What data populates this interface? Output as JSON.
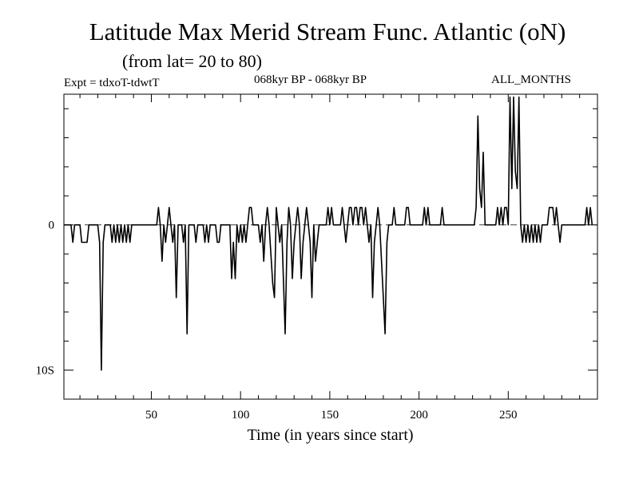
{
  "title": "Latitude Max Merid Stream Func. Atlantic (oN)",
  "subtitle": "(from lat= 20 to 80)",
  "experiment": "Expt = tdxoT-tdwtT",
  "period": "068kyr BP - 068kyr BP",
  "months": "ALL_MONTHS",
  "chart_data": {
    "type": "line",
    "title": "Latitude Max Merid Stream Func. Atlantic (oN)",
    "subtitle": "(from lat= 20 to 80)",
    "xlabel": "Time (in years since start)",
    "ylabel": "",
    "xlim": [
      1,
      300
    ],
    "ylim": [
      -12,
      9
    ],
    "x_ticks": [
      50,
      100,
      150,
      200,
      250
    ],
    "x_tick_labels": [
      "50",
      "100",
      "150",
      "200",
      "250"
    ],
    "y_ticks": [
      0,
      -10
    ],
    "y_tick_labels": [
      "0",
      "10S"
    ],
    "grid": false,
    "zero_line_dashed": true,
    "series": [
      {
        "color": "#000000",
        "points": [
          [
            1,
            0
          ],
          [
            5,
            0
          ],
          [
            6,
            -1.2
          ],
          [
            7,
            0
          ],
          [
            10,
            0
          ],
          [
            11,
            -1.2
          ],
          [
            14,
            -1.2
          ],
          [
            15,
            0
          ],
          [
            19,
            0
          ],
          [
            20,
            0
          ],
          [
            21,
            -1.2
          ],
          [
            22,
            -10
          ],
          [
            23,
            -1.2
          ],
          [
            24,
            0
          ],
          [
            27,
            0
          ],
          [
            28,
            -1.2
          ],
          [
            29,
            0
          ],
          [
            30,
            -1.2
          ],
          [
            31,
            0
          ],
          [
            32,
            -1.2
          ],
          [
            33,
            0
          ],
          [
            34,
            -1.2
          ],
          [
            35,
            0
          ],
          [
            36,
            -1.2
          ],
          [
            37,
            0
          ],
          [
            38,
            -1.2
          ],
          [
            39,
            0
          ],
          [
            42,
            0
          ],
          [
            53,
            0
          ],
          [
            54,
            1.2
          ],
          [
            55,
            0
          ],
          [
            56,
            -2.5
          ],
          [
            57,
            0
          ],
          [
            58,
            -1.2
          ],
          [
            59,
            0
          ],
          [
            60,
            1.2
          ],
          [
            61,
            0
          ],
          [
            62,
            -1.2
          ],
          [
            63,
            0
          ],
          [
            64,
            -5
          ],
          [
            65,
            0
          ],
          [
            67,
            0
          ],
          [
            68,
            -1.2
          ],
          [
            69,
            0
          ],
          [
            70,
            -7.5
          ],
          [
            71,
            0
          ],
          [
            74,
            0
          ],
          [
            75,
            -1.2
          ],
          [
            76,
            0
          ],
          [
            79,
            0
          ],
          [
            80,
            -1.2
          ],
          [
            81,
            0
          ],
          [
            82,
            -1.2
          ],
          [
            83,
            0
          ],
          [
            86,
            0
          ],
          [
            87,
            -1.2
          ],
          [
            88,
            -1.2
          ],
          [
            89,
            0
          ],
          [
            94,
            0
          ],
          [
            95,
            -3.7
          ],
          [
            96,
            -1.2
          ],
          [
            97,
            -3.7
          ],
          [
            98,
            0
          ],
          [
            99,
            -1.2
          ],
          [
            100,
            0
          ],
          [
            101,
            -1.2
          ],
          [
            102,
            0
          ],
          [
            103,
            -1.2
          ],
          [
            104,
            0
          ],
          [
            105,
            1.2
          ],
          [
            106,
            1.2
          ],
          [
            107,
            0
          ],
          [
            110,
            0
          ],
          [
            111,
            -1.2
          ],
          [
            112,
            0
          ],
          [
            113,
            -2.5
          ],
          [
            114,
            0
          ],
          [
            115,
            1.2
          ],
          [
            116,
            0
          ],
          [
            118,
            -4
          ],
          [
            119,
            -5
          ],
          [
            120,
            1.2
          ],
          [
            121,
            0
          ],
          [
            122,
            -1.2
          ],
          [
            123,
            0
          ],
          [
            124,
            -3.7
          ],
          [
            125,
            -7.5
          ],
          [
            126,
            -1.2
          ],
          [
            127,
            1.2
          ],
          [
            128,
            0
          ],
          [
            129,
            -3.7
          ],
          [
            130,
            -1.2
          ],
          [
            131,
            0
          ],
          [
            132,
            1.2
          ],
          [
            133,
            0
          ],
          [
            134,
            -3.7
          ],
          [
            135,
            -1.2
          ],
          [
            136,
            0
          ],
          [
            137,
            1.2
          ],
          [
            138,
            0
          ],
          [
            139,
            -1.2
          ],
          [
            140,
            -5
          ],
          [
            141,
            0
          ],
          [
            142,
            -2.5
          ],
          [
            143,
            -1.2
          ],
          [
            144,
            0
          ],
          [
            148,
            0
          ],
          [
            149,
            1.2
          ],
          [
            150,
            0
          ],
          [
            151,
            1.2
          ],
          [
            152,
            0
          ],
          [
            156,
            0
          ],
          [
            157,
            1.2
          ],
          [
            158,
            0
          ],
          [
            159,
            -1.2
          ],
          [
            160,
            0
          ],
          [
            161,
            1.2
          ],
          [
            162,
            1.2
          ],
          [
            163,
            0
          ],
          [
            164,
            1.2
          ],
          [
            165,
            1.2
          ],
          [
            166,
            0
          ],
          [
            167,
            1.2
          ],
          [
            168,
            1.2
          ],
          [
            169,
            0
          ],
          [
            170,
            1.2
          ],
          [
            171,
            0
          ],
          [
            172,
            -1.2
          ],
          [
            173,
            0
          ],
          [
            174,
            -5
          ],
          [
            175,
            -1.2
          ],
          [
            176,
            0
          ],
          [
            177,
            1.2
          ],
          [
            178,
            0
          ],
          [
            180,
            -5
          ],
          [
            181,
            -7.5
          ],
          [
            182,
            -1.2
          ],
          [
            183,
            0
          ],
          [
            185,
            0
          ],
          [
            186,
            1.2
          ],
          [
            187,
            0
          ],
          [
            192,
            0
          ],
          [
            193,
            1.2
          ],
          [
            194,
            1.2
          ],
          [
            195,
            0
          ],
          [
            202,
            0
          ],
          [
            203,
            1.2
          ],
          [
            204,
            0
          ],
          [
            205,
            1.2
          ],
          [
            206,
            0
          ],
          [
            212,
            0
          ],
          [
            213,
            1.2
          ],
          [
            214,
            0
          ],
          [
            231,
            0
          ],
          [
            232,
            1.2
          ],
          [
            233,
            7.5
          ],
          [
            234,
            2.5
          ],
          [
            235,
            1.2
          ],
          [
            236,
            5
          ],
          [
            237,
            0
          ],
          [
            243,
            0
          ],
          [
            244,
            1.2
          ],
          [
            245,
            0
          ],
          [
            246,
            1.2
          ],
          [
            247,
            0
          ],
          [
            248,
            1.2
          ],
          [
            249,
            1.2
          ],
          [
            250,
            0
          ],
          [
            251,
            8.8
          ],
          [
            252,
            2.5
          ],
          [
            253,
            8.8
          ],
          [
            254,
            3.7
          ],
          [
            255,
            2.5
          ],
          [
            256,
            8.8
          ],
          [
            257,
            0
          ],
          [
            258,
            -1.2
          ],
          [
            259,
            0
          ],
          [
            260,
            -1.2
          ],
          [
            261,
            0
          ],
          [
            262,
            -1.2
          ],
          [
            263,
            0
          ],
          [
            264,
            -1.2
          ],
          [
            265,
            0
          ],
          [
            266,
            -1.2
          ],
          [
            267,
            0
          ],
          [
            268,
            -1.2
          ],
          [
            269,
            0
          ],
          [
            272,
            0
          ],
          [
            273,
            1.2
          ],
          [
            274,
            1.2
          ],
          [
            275,
            1.2
          ],
          [
            276,
            0
          ],
          [
            277,
            1.2
          ],
          [
            278,
            0
          ],
          [
            279,
            -1.2
          ],
          [
            280,
            0
          ],
          [
            293,
            0
          ],
          [
            294,
            1.2
          ],
          [
            295,
            0
          ],
          [
            296,
            1.2
          ],
          [
            297,
            0
          ]
        ]
      }
    ]
  }
}
